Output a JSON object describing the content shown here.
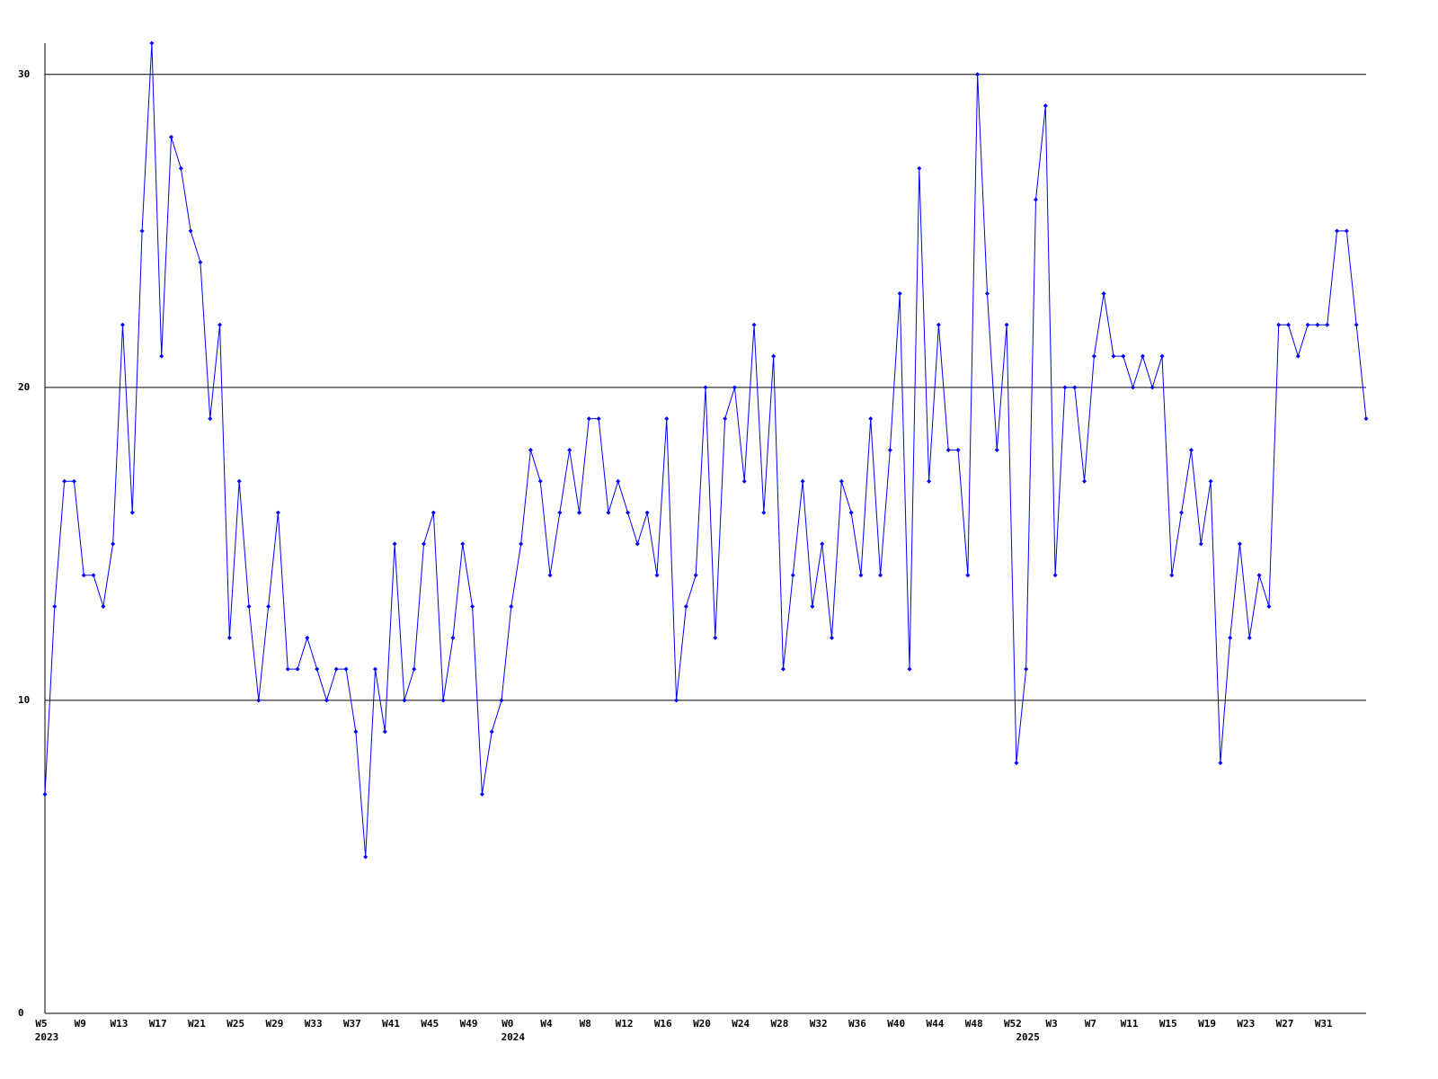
{
  "chart_data": {
    "type": "line",
    "categories": [
      "W5",
      null,
      null,
      null,
      "W9",
      null,
      null,
      null,
      "W13",
      null,
      null,
      null,
      "W17",
      null,
      null,
      null,
      "W21",
      null,
      null,
      null,
      "W25",
      null,
      null,
      null,
      "W29",
      null,
      null,
      null,
      "W33",
      null,
      null,
      null,
      "W37",
      null,
      null,
      null,
      "W41",
      null,
      null,
      null,
      "W45",
      null,
      null,
      null,
      "W49",
      null,
      null,
      null,
      "W0",
      null,
      null,
      null,
      "W4",
      null,
      null,
      null,
      "W8",
      null,
      null,
      null,
      "W12",
      null,
      null,
      null,
      "W16",
      null,
      null,
      null,
      "W20",
      null,
      null,
      null,
      "W24",
      null,
      null,
      null,
      "W28",
      null,
      null,
      null,
      "W32",
      null,
      null,
      null,
      "W36",
      null,
      null,
      null,
      "W40",
      null,
      null,
      null,
      "W44",
      null,
      null,
      null,
      "W48",
      null,
      null,
      null,
      "W52",
      null,
      null,
      null,
      "W3",
      null,
      null,
      null,
      "W7",
      null,
      null,
      null,
      "W11",
      null,
      null,
      null,
      "W15",
      null,
      null,
      null,
      "W19",
      null,
      null,
      null,
      "W23",
      null,
      null,
      null,
      "W27",
      null,
      null,
      null,
      "W31",
      null,
      null,
      null,
      null
    ],
    "x_year_labels": [
      "2023",
      null,
      null,
      null,
      null,
      null,
      null,
      null,
      null,
      null,
      null,
      null,
      null,
      null,
      null,
      null,
      null,
      null,
      null,
      null,
      null,
      null,
      null,
      null,
      null,
      null,
      null,
      null,
      null,
      null,
      null,
      null,
      null,
      null,
      null,
      null,
      null,
      null,
      null,
      null,
      null,
      null,
      null,
      null,
      null,
      null,
      null,
      null,
      "2024",
      null,
      null,
      null,
      null,
      null,
      null,
      null,
      null,
      null,
      null,
      null,
      null,
      null,
      null,
      null,
      null,
      null,
      null,
      null,
      null,
      null,
      null,
      null,
      null,
      null,
      null,
      null,
      null,
      null,
      null,
      null,
      null,
      null,
      null,
      null,
      null,
      null,
      null,
      null,
      null,
      null,
      null,
      null,
      null,
      null,
      null,
      null,
      null,
      null,
      null,
      null,
      null,
      "2025",
      null,
      null,
      null,
      null,
      null,
      null,
      null,
      null,
      null,
      null,
      null,
      null,
      null,
      null,
      null,
      null,
      null,
      null,
      null,
      null,
      null,
      null,
      null,
      null,
      null,
      null,
      null,
      null,
      null,
      null,
      null,
      null,
      null,
      null,
      null
    ],
    "series": [
      {
        "color": "#0000ff",
        "values": [
          7,
          13,
          17,
          17,
          14,
          14,
          13,
          15,
          22,
          16,
          25,
          31,
          21,
          28,
          27,
          25,
          24,
          19,
          22,
          12,
          17,
          13,
          10,
          13,
          16,
          11,
          11,
          12,
          11,
          10,
          11,
          11,
          9,
          5,
          11,
          9,
          15,
          10,
          11,
          15,
          16,
          10,
          12,
          15,
          13,
          7,
          9,
          10,
          13,
          15,
          18,
          17,
          14,
          16,
          18,
          16,
          19,
          19,
          16,
          17,
          16,
          15,
          16,
          14,
          19,
          10,
          13,
          14,
          20,
          12,
          19,
          20,
          17,
          22,
          16,
          21,
          11,
          14,
          17,
          13,
          15,
          12,
          17,
          16,
          14,
          19,
          14,
          18,
          23,
          11,
          27,
          17,
          22,
          18,
          18,
          14,
          30,
          23,
          18,
          22,
          8,
          11,
          26,
          29,
          14,
          20,
          20,
          17,
          21,
          23,
          21,
          21,
          20,
          21,
          20,
          21,
          14,
          16,
          18,
          15,
          17,
          8,
          12,
          15,
          12,
          14,
          13,
          22,
          22,
          21,
          22,
          22,
          22,
          25,
          25,
          22,
          19
        ]
      }
    ],
    "ylim": [
      0,
      31
    ],
    "yticks": [
      0,
      10,
      20,
      30
    ],
    "grid": true
  }
}
